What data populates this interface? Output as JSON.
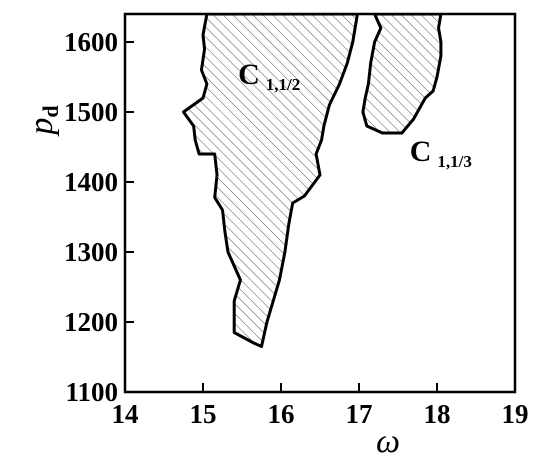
{
  "chart_data": {
    "type": "area",
    "xlabel": "ω",
    "ylabel_main": "p",
    "ylabel_sub": "d",
    "xlim": [
      14,
      19
    ],
    "ylim": [
      1100,
      1640
    ],
    "xticks": [
      "14",
      "15",
      "16",
      "17",
      "18",
      "19"
    ],
    "yticks": [
      "1100",
      "1200",
      "1300",
      "1400",
      "1500",
      "1600"
    ],
    "grid": false,
    "fill_pattern": "diagonal-hatch",
    "series": [
      {
        "label_main": "C",
        "label_sub": "1,1/2",
        "label_anchor": [
          15.45,
          1540
        ],
        "points": [
          [
            16.98,
            1640
          ],
          [
            16.92,
            1600
          ],
          [
            16.85,
            1570
          ],
          [
            16.75,
            1540
          ],
          [
            16.62,
            1510
          ],
          [
            16.55,
            1480
          ],
          [
            16.52,
            1460
          ],
          [
            16.45,
            1440
          ],
          [
            16.5,
            1410
          ],
          [
            16.4,
            1395
          ],
          [
            16.3,
            1380
          ],
          [
            16.15,
            1370
          ],
          [
            16.1,
            1340
          ],
          [
            16.05,
            1300
          ],
          [
            15.98,
            1260
          ],
          [
            15.9,
            1230
          ],
          [
            15.82,
            1200
          ],
          [
            15.75,
            1165
          ],
          [
            15.65,
            1170
          ],
          [
            15.4,
            1185
          ],
          [
            15.4,
            1230
          ],
          [
            15.48,
            1260
          ],
          [
            15.4,
            1280
          ],
          [
            15.32,
            1300
          ],
          [
            15.28,
            1330
          ],
          [
            15.25,
            1360
          ],
          [
            15.15,
            1378
          ],
          [
            15.18,
            1410
          ],
          [
            15.15,
            1440
          ],
          [
            14.95,
            1440
          ],
          [
            14.9,
            1460
          ],
          [
            14.88,
            1480
          ],
          [
            14.75,
            1500
          ],
          [
            15.0,
            1520
          ],
          [
            15.05,
            1540
          ],
          [
            14.98,
            1560
          ],
          [
            15.02,
            1590
          ],
          [
            15.0,
            1610
          ],
          [
            15.05,
            1640
          ]
        ]
      },
      {
        "label_main": "C",
        "label_sub": "1,1/3",
        "label_anchor": [
          17.65,
          1430
        ],
        "points": [
          [
            17.2,
            1640
          ],
          [
            17.28,
            1620
          ],
          [
            17.2,
            1600
          ],
          [
            17.15,
            1570
          ],
          [
            17.12,
            1540
          ],
          [
            17.08,
            1520
          ],
          [
            17.05,
            1500
          ],
          [
            17.1,
            1480
          ],
          [
            17.3,
            1470
          ],
          [
            17.55,
            1470
          ],
          [
            17.7,
            1490
          ],
          [
            17.8,
            1510
          ],
          [
            17.85,
            1520
          ],
          [
            17.95,
            1530
          ],
          [
            18.0,
            1550
          ],
          [
            18.05,
            1580
          ],
          [
            18.05,
            1600
          ],
          [
            18.02,
            1620
          ],
          [
            18.05,
            1640
          ]
        ]
      }
    ]
  }
}
